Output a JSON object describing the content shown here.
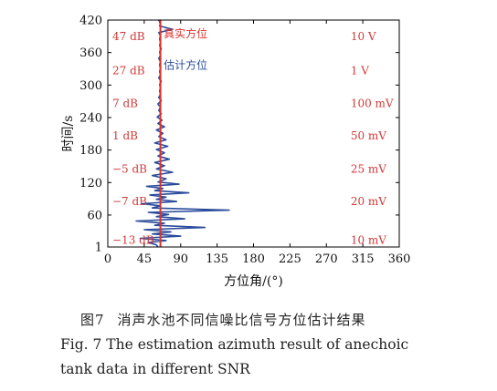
{
  "chart_data": {
    "type": "line",
    "xlabel": "方位角/(°)",
    "ylabel": "时间/s",
    "xlim": [
      0,
      360
    ],
    "ylim": [
      1,
      420
    ],
    "xticks": [
      0,
      45,
      90,
      135,
      180,
      225,
      270,
      315,
      360
    ],
    "yticks": [
      1,
      60,
      120,
      180,
      240,
      300,
      360,
      420
    ],
    "grid": false,
    "series": [
      {
        "name": "真实方位",
        "color": "#e0302a",
        "style": "vertical",
        "x": [
          65,
          65
        ],
        "y": [
          1,
          420
        ]
      },
      {
        "name": "估计方位",
        "color": "#2a4b9b",
        "x": [
          62,
          60,
          50,
          72,
          40,
          90,
          55,
          78,
          45,
          120,
          58,
          70,
          35,
          95,
          60,
          75,
          50,
          150,
          55,
          65,
          42,
          85,
          60,
          72,
          52,
          100,
          58,
          68,
          48,
          88,
          62,
          72,
          55,
          80,
          60,
          70,
          58,
          76,
          62,
          70,
          60,
          74,
          58,
          72,
          63,
          68,
          60,
          70,
          62,
          67,
          61,
          66,
          63,
          65,
          62,
          66,
          63,
          65,
          64,
          65,
          64,
          66,
          63,
          65,
          64,
          65,
          64,
          65,
          63,
          65,
          64,
          66,
          64,
          65,
          64,
          65,
          63,
          80,
          64,
          65,
          64,
          65,
          63,
          65
        ],
        "y": [
          1,
          5,
          9,
          13,
          17,
          21,
          25,
          29,
          33,
          37,
          41,
          45,
          49,
          53,
          57,
          61,
          65,
          69,
          73,
          77,
          81,
          85,
          89,
          93,
          97,
          101,
          105,
          109,
          113,
          117,
          121,
          127,
          133,
          139,
          145,
          151,
          157,
          163,
          169,
          175,
          181,
          187,
          193,
          199,
          205,
          211,
          217,
          223,
          229,
          235,
          241,
          247,
          253,
          259,
          265,
          271,
          277,
          283,
          289,
          295,
          301,
          307,
          313,
          319,
          325,
          331,
          337,
          343,
          349,
          355,
          361,
          367,
          373,
          379,
          385,
          391,
          397,
          403,
          409,
          413,
          416,
          418,
          419,
          420
        ]
      }
    ],
    "annotations": {
      "series_labels": [
        "真实方位",
        "估计方位"
      ],
      "snr_labels": [
        {
          "label": "47 dB",
          "t": 390
        },
        {
          "label": "27 dB",
          "t": 327
        },
        {
          "label": "7 dB",
          "t": 266
        },
        {
          "label": "1 dB",
          "t": 206
        },
        {
          "label": "−5 dB",
          "t": 145
        },
        {
          "label": "−7 dB",
          "t": 85
        },
        {
          "label": "−13 dB",
          "t": 14
        }
      ],
      "level_labels": [
        {
          "label": "10 V",
          "t": 390
        },
        {
          "label": "1 V",
          "t": 327
        },
        {
          "label": "100 mV",
          "t": 266
        },
        {
          "label": "50 mV",
          "t": 206
        },
        {
          "label": "25 mV",
          "t": 145
        },
        {
          "label": "20 mV",
          "t": 85
        },
        {
          "label": "10 mV",
          "t": 14
        }
      ]
    }
  },
  "caption": {
    "cn_fig_no": "图7",
    "cn_text": "消声水池不同信噪比信号方位估计结果",
    "en_line1": "Fig. 7  The estimation azimuth result of anechoic",
    "en_line2": "tank data in different SNR"
  },
  "colors": {
    "annotation": "#d23a3a",
    "estimate": "#2a4b9b",
    "true": "#e0302a",
    "axis": "#000000"
  }
}
